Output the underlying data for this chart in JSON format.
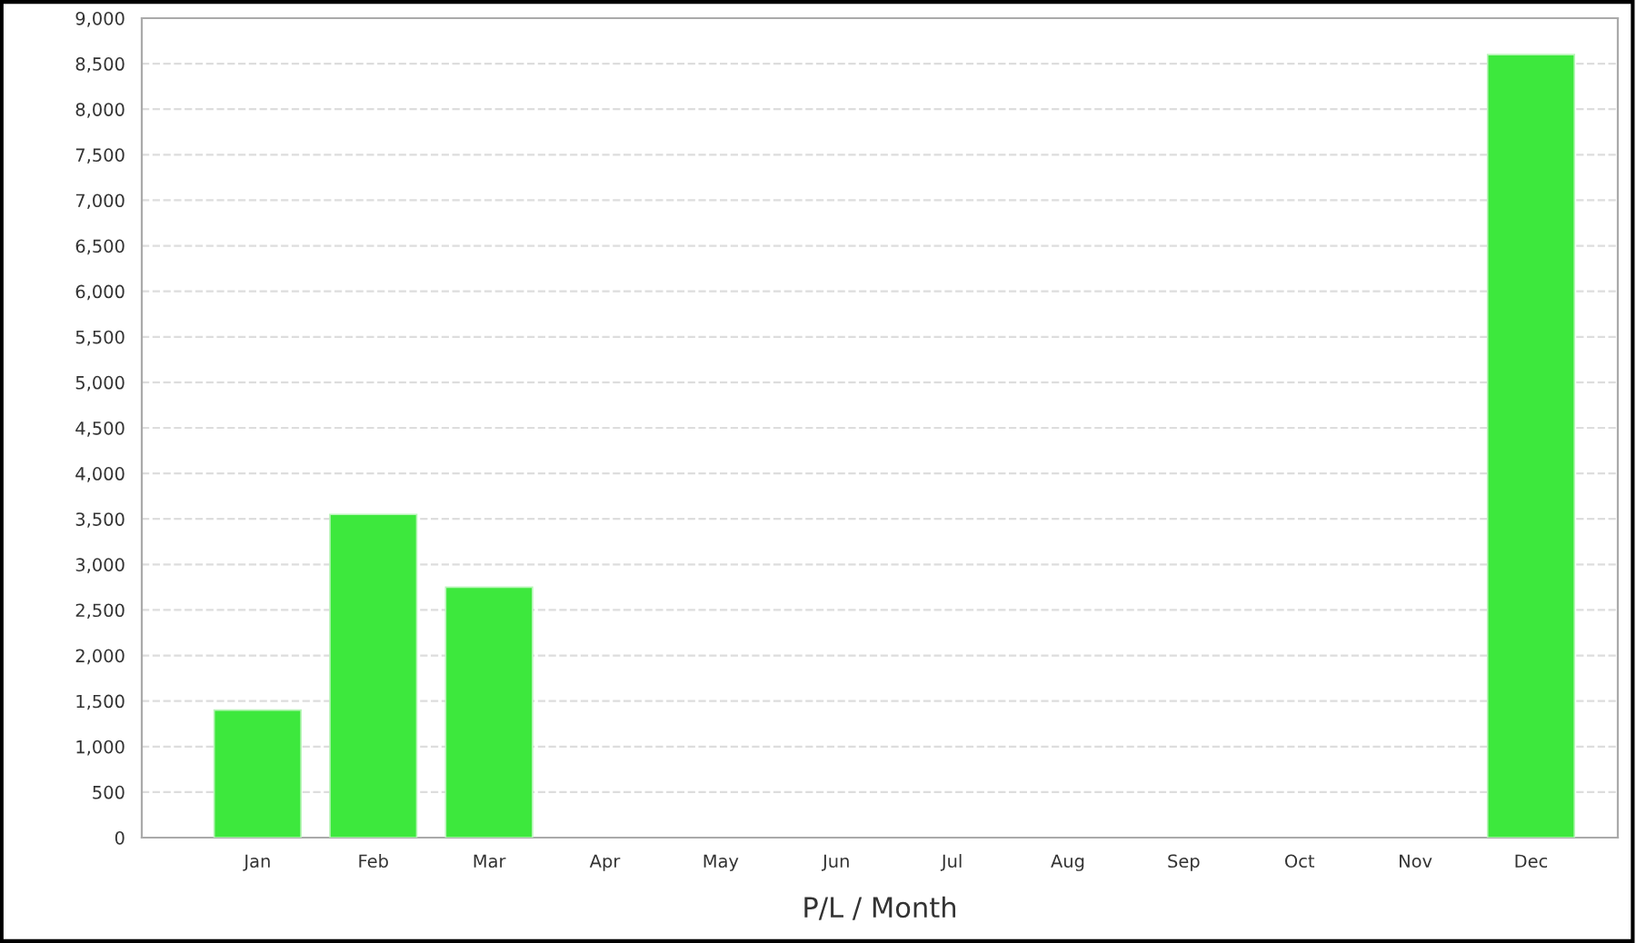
{
  "chart_data": {
    "type": "bar",
    "xlabel": "P/L / Month",
    "categories": [
      "Jan",
      "Feb",
      "Mar",
      "Apr",
      "May",
      "Jun",
      "Jul",
      "Aug",
      "Sep",
      "Oct",
      "Nov",
      "Dec"
    ],
    "values": [
      1400,
      3550,
      2750,
      null,
      null,
      null,
      null,
      null,
      null,
      null,
      null,
      8600
    ],
    "color": "#3de83d",
    "ylim": [
      0,
      9000
    ],
    "yticks": [
      {
        "value": 0,
        "label": "0"
      },
      {
        "value": 500,
        "label": "500"
      },
      {
        "value": 1000,
        "label": "1,000"
      },
      {
        "value": 1500,
        "label": "1,500"
      },
      {
        "value": 2000,
        "label": "2,000"
      },
      {
        "value": 2500,
        "label": "2,500"
      },
      {
        "value": 3000,
        "label": "3,000"
      },
      {
        "value": 3500,
        "label": "3,500"
      },
      {
        "value": 4000,
        "label": "4,000"
      },
      {
        "value": 4500,
        "label": "4,500"
      },
      {
        "value": 5000,
        "label": "5,000"
      },
      {
        "value": 5500,
        "label": "5,500"
      },
      {
        "value": 6000,
        "label": "6,000"
      },
      {
        "value": 6500,
        "label": "6,500"
      },
      {
        "value": 7000,
        "label": "7,000"
      },
      {
        "value": 7500,
        "label": "7,500"
      },
      {
        "value": 8000,
        "label": "8,000"
      },
      {
        "value": 8500,
        "label": "8,500"
      },
      {
        "value": 9000,
        "label": "9,000"
      }
    ],
    "grid": "y",
    "line_style": "dashed"
  }
}
